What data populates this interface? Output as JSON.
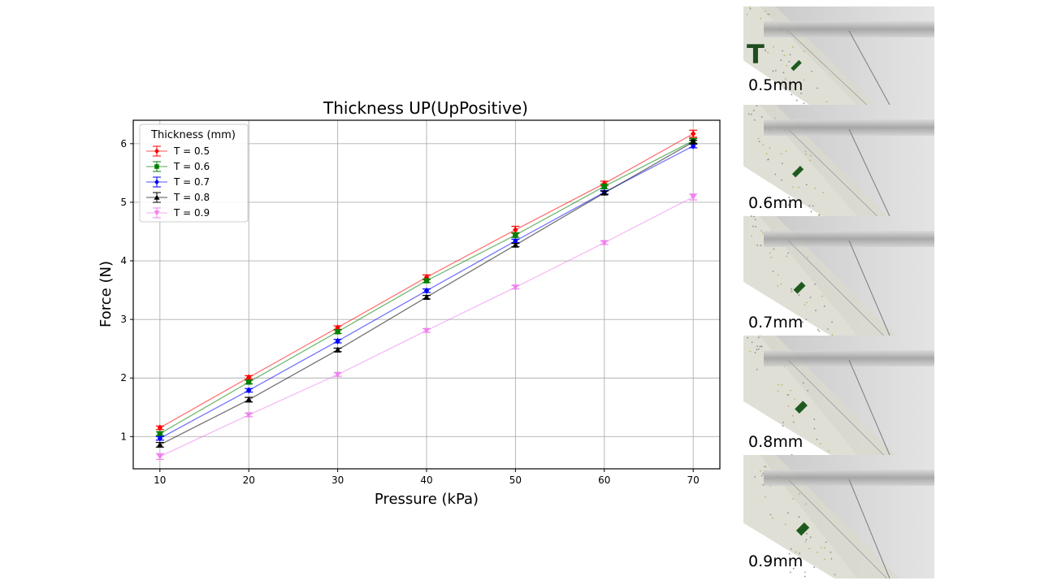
{
  "chart_data": {
    "type": "line",
    "title": "Thickness UP(UpPositive)",
    "xlabel": "Pressure (kPa)",
    "ylabel": "Force (N)",
    "x": [
      10,
      20,
      30,
      40,
      50,
      60,
      70
    ],
    "xlim": [
      7,
      73
    ],
    "ylim": [
      0.45,
      6.4
    ],
    "xticks": [
      10,
      20,
      30,
      40,
      50,
      60,
      70
    ],
    "yticks": [
      1,
      2,
      3,
      4,
      5,
      6
    ],
    "grid": true,
    "legend_title": "Thickness (mm)",
    "legend_position": "top-left",
    "series": [
      {
        "name": "T = 0.5",
        "color": "#ff0000",
        "marker": "diamond",
        "values": [
          1.15,
          2.01,
          2.86,
          3.72,
          4.53,
          5.32,
          6.17
        ],
        "errors": [
          0.03,
          0.03,
          0.03,
          0.04,
          0.06,
          0.04,
          0.06
        ]
      },
      {
        "name": "T = 0.6",
        "color": "#008000",
        "marker": "square",
        "values": [
          1.05,
          1.93,
          2.79,
          3.66,
          4.44,
          5.27,
          6.05
        ],
        "errors": [
          0.03,
          0.03,
          0.03,
          0.03,
          0.04,
          0.04,
          0.04
        ]
      },
      {
        "name": "T = 0.7",
        "color": "#0000ff",
        "marker": "diamond",
        "values": [
          0.97,
          1.79,
          2.63,
          3.49,
          4.34,
          5.17,
          5.96
        ],
        "errors": [
          0.03,
          0.03,
          0.03,
          0.03,
          0.03,
          0.03,
          0.03
        ]
      },
      {
        "name": "T = 0.8",
        "color": "#000000",
        "marker": "triangle-up",
        "values": [
          0.86,
          1.63,
          2.48,
          3.38,
          4.27,
          5.16,
          6.03
        ],
        "errors": [
          0.04,
          0.04,
          0.03,
          0.03,
          0.03,
          0.03,
          0.03
        ]
      },
      {
        "name": "T = 0.9",
        "color": "#ee82ee",
        "marker": "triangle-down",
        "values": [
          0.66,
          1.37,
          2.06,
          2.81,
          3.55,
          4.31,
          5.09
        ],
        "errors": [
          0.05,
          0.03,
          0.03,
          0.03,
          0.03,
          0.03,
          0.05
        ]
      }
    ]
  },
  "thickness_panels": {
    "symbol": "T",
    "labels": [
      "0.5mm",
      "0.6mm",
      "0.7mm",
      "0.8mm",
      "0.9mm"
    ]
  }
}
